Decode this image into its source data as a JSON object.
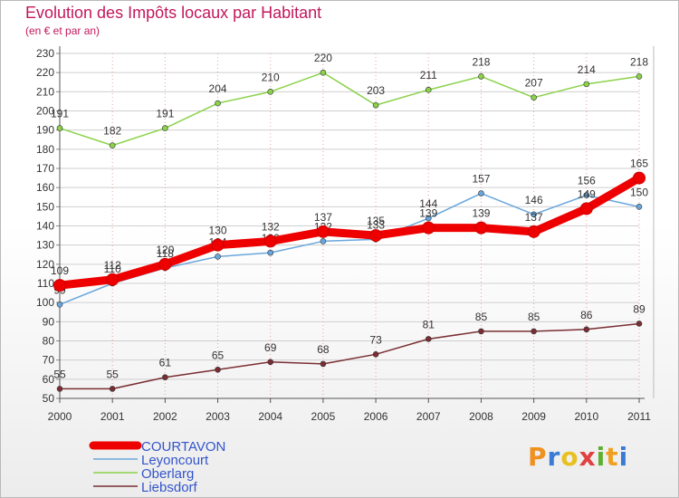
{
  "chart_data": {
    "type": "line",
    "title": "Evolution des Impôts locaux par Habitant",
    "subtitle": "(en € et par an)",
    "x": [
      "2000",
      "2001",
      "2002",
      "2003",
      "2004",
      "2005",
      "2006",
      "2007",
      "2008",
      "2009",
      "2010",
      "2011"
    ],
    "ylim": [
      50,
      230
    ],
    "yticks": [
      50,
      60,
      70,
      80,
      90,
      100,
      110,
      120,
      130,
      140,
      150,
      160,
      170,
      180,
      190,
      200,
      210,
      220,
      230
    ],
    "series": [
      {
        "name": "COURTAVON",
        "color": "#ee0000",
        "values": [
          109,
          112,
          120,
          130,
          132,
          137,
          135,
          139,
          139,
          137,
          149,
          165
        ]
      },
      {
        "name": "Leyoncourt",
        "color": "#6aa6dc",
        "values": [
          99,
          110,
          118,
          124,
          126,
          132,
          133,
          144,
          157,
          146,
          156,
          150
        ]
      },
      {
        "name": "Oberlarg",
        "color": "#8bd24a",
        "values": [
          191,
          182,
          191,
          204,
          210,
          220,
          203,
          211,
          218,
          207,
          214,
          218
        ]
      },
      {
        "name": "Liebsdorf",
        "color": "#7a2e33",
        "values": [
          55,
          55,
          61,
          65,
          69,
          68,
          73,
          81,
          85,
          85,
          86,
          89
        ]
      }
    ]
  },
  "logo": {
    "text": "Proxiti"
  }
}
